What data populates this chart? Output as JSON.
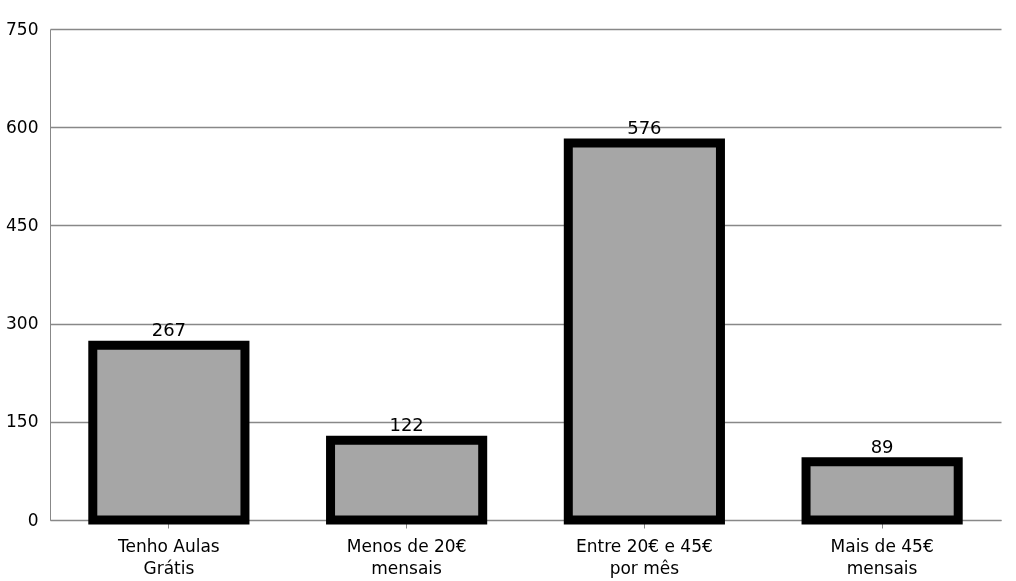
{
  "chart_data": {
    "type": "bar",
    "categories": [
      "Tenho Aulas Grátis",
      "Menos de 20€ mensais",
      "Entre 20€ e 45€ por mês",
      "Mais de 45€ mensais"
    ],
    "values": [
      267,
      122,
      576,
      89
    ],
    "color": "#a6a6a6",
    "ylim": [
      0,
      750
    ],
    "yticks": [
      0,
      150,
      300,
      450,
      600,
      750
    ],
    "grid": "y",
    "data_labels": true
  }
}
